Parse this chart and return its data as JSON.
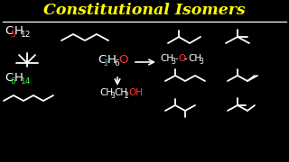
{
  "title": "Constitutional Isomers",
  "title_color": "#FFFF00",
  "bg_color": "#000000",
  "line_color": "#FFFFFF",
  "red_color": "#FF3333",
  "green_color": "#33FF33",
  "cyan_color": "#00CCFF",
  "white": "#FFFFFF",
  "yellow": "#FFFF00"
}
